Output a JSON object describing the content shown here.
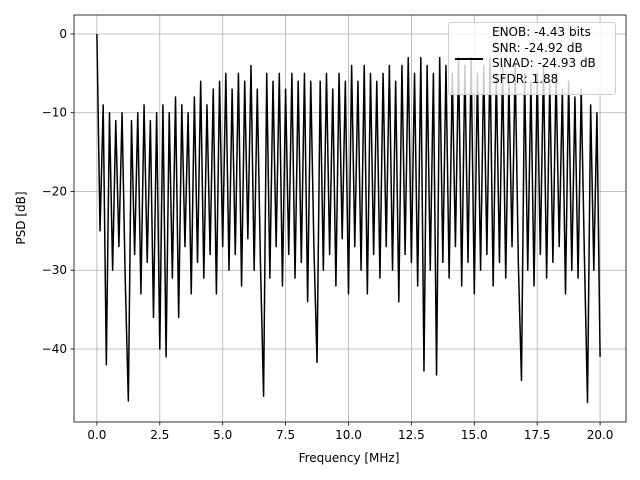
{
  "chart_data": {
    "type": "line",
    "xlabel": "Frequency [MHz]",
    "ylabel": "PSD [dB]",
    "xlim": [
      -0.91,
      21.03
    ],
    "ylim": [
      -49.27,
      2.41
    ],
    "xticks": [
      {
        "value": 0,
        "label": "0.0"
      },
      {
        "value": 2.5,
        "label": "2.5"
      },
      {
        "value": 5,
        "label": "5.0"
      },
      {
        "value": 7.5,
        "label": "7.5"
      },
      {
        "value": 10,
        "label": "10.0"
      },
      {
        "value": 12.5,
        "label": "12.5"
      },
      {
        "value": 15,
        "label": "15.0"
      },
      {
        "value": 17.5,
        "label": "17.5"
      },
      {
        "value": 20,
        "label": "20.0"
      }
    ],
    "yticks": [
      0,
      {
        "value": -10,
        "label": "−10"
      },
      {
        "value": -20,
        "label": "−20"
      },
      {
        "value": -30,
        "label": "−30"
      },
      {
        "value": -40,
        "label": "−40"
      }
    ],
    "grid": true,
    "legend": "upper right",
    "x": [
      0,
      0.125,
      0.25,
      0.375,
      0.5,
      0.625,
      0.75,
      0.875,
      1,
      1.125,
      1.25,
      1.375,
      1.5,
      1.625,
      1.75,
      1.875,
      2,
      2.125,
      2.25,
      2.375,
      2.5,
      2.625,
      2.75,
      2.875,
      3,
      3.125,
      3.25,
      3.375,
      3.5,
      3.625,
      3.75,
      3.875,
      4,
      4.125,
      4.25,
      4.375,
      4.5,
      4.625,
      4.75,
      4.875,
      5,
      5.125,
      5.25,
      5.375,
      5.5,
      5.625,
      5.75,
      5.875,
      6,
      6.125,
      6.25,
      6.375,
      6.5,
      6.625,
      6.75,
      6.875,
      7,
      7.125,
      7.25,
      7.375,
      7.5,
      7.625,
      7.75,
      7.875,
      8,
      8.125,
      8.25,
      8.375,
      8.5,
      8.625,
      8.75,
      8.875,
      9,
      9.125,
      9.25,
      9.375,
      9.5,
      9.625,
      9.75,
      9.875,
      10,
      10.125,
      10.25,
      10.375,
      10.5,
      10.625,
      10.75,
      10.875,
      11,
      11.125,
      11.25,
      11.375,
      11.5,
      11.625,
      11.75,
      11.875,
      12,
      12.125,
      12.25,
      12.375,
      12.5,
      12.625,
      12.75,
      12.875,
      13,
      13.125,
      13.25,
      13.375,
      13.5,
      13.625,
      13.75,
      13.875,
      14,
      14.125,
      14.25,
      14.375,
      14.5,
      14.625,
      14.75,
      14.875,
      15,
      15.125,
      15.25,
      15.375,
      15.5,
      15.625,
      15.75,
      15.875,
      16,
      16.125,
      16.25,
      16.375,
      16.5,
      16.625,
      16.75,
      16.875,
      17,
      17.125,
      17.25,
      17.375,
      17.5,
      17.625,
      17.75,
      17.875,
      18,
      18.125,
      18.25,
      18.375,
      18.5,
      18.625,
      18.75,
      18.875,
      19,
      19.125,
      19.25,
      19.375,
      19.5,
      19.625,
      19.75,
      19.875,
      20
    ],
    "series": [
      {
        "name": "ENOB: -4.43 bits\nSNR: -24.92 dB\nSINAD: -24.93 dB\nSFDR: 1.88",
        "color": "#000000",
        "values": [
          0,
          -25,
          -9,
          -42,
          -10,
          -30,
          -11,
          -27,
          -10,
          -31,
          -46.6,
          -11,
          -28,
          -10,
          -33,
          -9,
          -29,
          -11,
          -36,
          -10,
          -40,
          -9,
          -41,
          -10,
          -31,
          -8,
          -36,
          -9,
          -27,
          -10,
          -33,
          -8,
          -29,
          -6,
          -31,
          -9,
          -28,
          -7,
          -33,
          -6,
          -27,
          -5,
          -30,
          -7,
          -28,
          -5,
          -32,
          -6,
          -26,
          -4,
          -30,
          -7,
          -29,
          -46,
          -5,
          -31,
          -6,
          -27,
          -5,
          -32,
          -7,
          -28,
          -5,
          -31,
          -6,
          -29,
          -5,
          -34,
          -6,
          -27,
          -41.7,
          -6,
          -30,
          -5,
          -28,
          -7,
          -32,
          -5,
          -26,
          -6,
          -33,
          -4,
          -27,
          -6,
          -30,
          -4,
          -33,
          -5,
          -28,
          -6,
          -31,
          -5,
          -27,
          -4,
          -30,
          -6,
          -34,
          -4,
          -28,
          -3,
          -29,
          -5,
          -32,
          -3,
          -42.8,
          -4,
          -30,
          -5,
          -43.3,
          -3,
          -29,
          -4,
          -31,
          -5,
          -27,
          -3,
          -32,
          -4,
          -29,
          -3,
          -33,
          -5,
          -30,
          -4,
          -28,
          -3,
          -32,
          -5,
          -29,
          -4,
          -31,
          -6,
          -27,
          -4,
          -29,
          -44,
          -5,
          -30,
          -6,
          -32,
          -5,
          -28,
          -4,
          -31,
          -6,
          -29,
          -5,
          -27,
          -7,
          -33,
          -6,
          -30,
          -8,
          -31,
          -7,
          -28,
          -46.8,
          -9,
          -30,
          -10,
          -41
        ]
      }
    ]
  }
}
